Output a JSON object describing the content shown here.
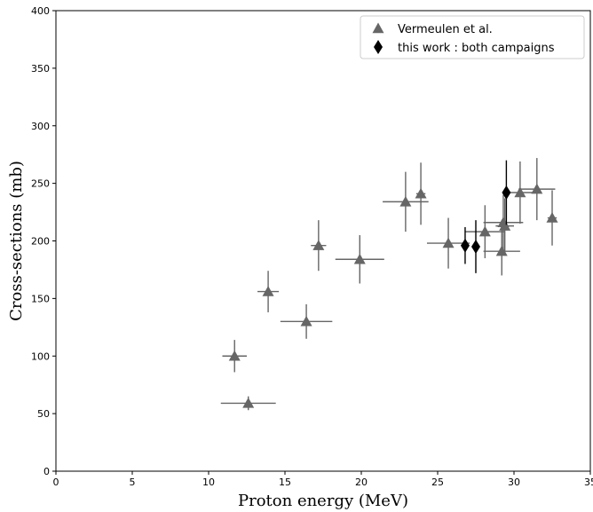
{
  "chart_data": {
    "type": "scatter",
    "title": "",
    "xlabel": "Proton energy (MeV)",
    "ylabel": "Cross-sections (mb)",
    "xlim": [
      0,
      35
    ],
    "ylim": [
      0,
      400
    ],
    "xticks": [
      0,
      5,
      10,
      15,
      20,
      25,
      30,
      35
    ],
    "yticks": [
      0,
      50,
      100,
      150,
      200,
      250,
      300,
      350,
      400
    ],
    "grid": false,
    "legend_position": "top-right",
    "series": [
      {
        "name": "Vermeulen et al.",
        "marker": "triangle",
        "color": "#666666",
        "points": [
          {
            "x": 11.7,
            "y": 100,
            "xerr": 0.8,
            "yerr": 14
          },
          {
            "x": 12.6,
            "y": 59,
            "xerr": 1.8,
            "yerr": 6
          },
          {
            "x": 13.9,
            "y": 156,
            "xerr": 0.7,
            "yerr": 18
          },
          {
            "x": 16.4,
            "y": 130,
            "xerr": 1.7,
            "yerr": 15
          },
          {
            "x": 17.2,
            "y": 196,
            "xerr": 0.5,
            "yerr": 22
          },
          {
            "x": 19.9,
            "y": 184,
            "xerr": 1.6,
            "yerr": 21
          },
          {
            "x": 22.9,
            "y": 234,
            "xerr": 1.5,
            "yerr": 26
          },
          {
            "x": 23.9,
            "y": 241,
            "xerr": 0.3,
            "yerr": 27
          },
          {
            "x": 25.7,
            "y": 198,
            "xerr": 1.4,
            "yerr": 22
          },
          {
            "x": 28.1,
            "y": 208,
            "xerr": 1.3,
            "yerr": 23
          },
          {
            "x": 29.2,
            "y": 191,
            "xerr": 1.2,
            "yerr": 21
          },
          {
            "x": 29.3,
            "y": 216,
            "xerr": 1.3,
            "yerr": 24
          },
          {
            "x": 29.4,
            "y": 213,
            "xerr": 0.6,
            "yerr": 24
          },
          {
            "x": 30.4,
            "y": 242,
            "xerr": 0.9,
            "yerr": 27
          },
          {
            "x": 31.5,
            "y": 245,
            "xerr": 1.2,
            "yerr": 27
          },
          {
            "x": 32.5,
            "y": 220,
            "xerr": 0.3,
            "yerr": 24
          }
        ]
      },
      {
        "name": "this work : both campaigns",
        "marker": "diamond",
        "color": "#000000",
        "points": [
          {
            "x": 26.8,
            "y": 196,
            "xerr": 0.1,
            "yerr": 16
          },
          {
            "x": 27.5,
            "y": 195,
            "xerr": 0.1,
            "yerr": 23
          },
          {
            "x": 29.5,
            "y": 242,
            "xerr": 0.1,
            "yerr": 28
          }
        ]
      }
    ]
  }
}
